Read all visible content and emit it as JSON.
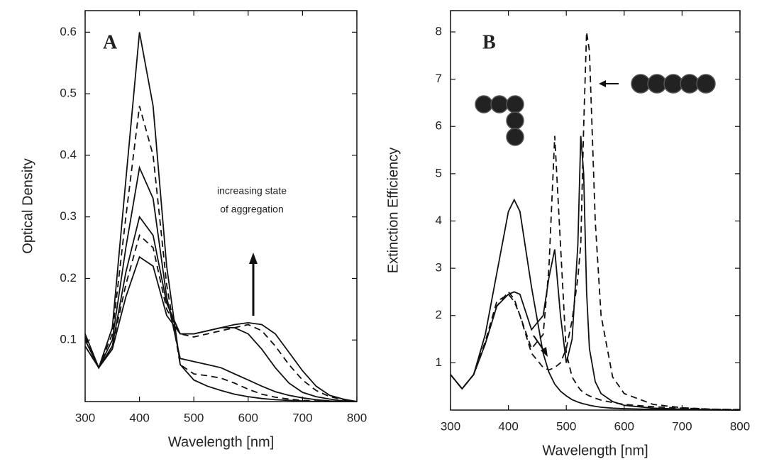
{
  "chart_data": [
    {
      "type": "line",
      "panel": "A",
      "x_label": "Wavelength [nm]",
      "y_label": "Optical Density",
      "annotation": [
        "increasing state",
        "of aggregation"
      ],
      "xlim": [
        300,
        800
      ],
      "xticks": [
        300,
        400,
        500,
        600,
        700,
        800
      ],
      "ylim": [
        0,
        0.635
      ],
      "yticks": [
        0.1,
        0.2,
        0.3,
        0.4,
        0.5,
        0.6
      ],
      "x": [
        300,
        325,
        350,
        375,
        400,
        425,
        450,
        475,
        500,
        525,
        550,
        575,
        600,
        625,
        650,
        675,
        700,
        725,
        750,
        775,
        800
      ],
      "series": [
        {
          "color": "#111111",
          "style": "solid",
          "values": [
            0.11,
            0.055,
            0.12,
            0.36,
            0.6,
            0.48,
            0.22,
            0.06,
            0.035,
            0.025,
            0.018,
            0.012,
            0.008,
            0.005,
            0.003,
            0.002,
            0.001,
            0,
            0,
            0,
            0
          ]
        },
        {
          "color": "#111111",
          "style": "dashed",
          "values": [
            0.105,
            0.055,
            0.11,
            0.3,
            0.48,
            0.4,
            0.19,
            0.06,
            0.045,
            0.042,
            0.038,
            0.03,
            0.02,
            0.012,
            0.007,
            0.004,
            0.002,
            0.001,
            0,
            0,
            0
          ]
        },
        {
          "color": "#111111",
          "style": "solid",
          "values": [
            0.1,
            0.055,
            0.1,
            0.25,
            0.38,
            0.33,
            0.17,
            0.07,
            0.065,
            0.06,
            0.055,
            0.045,
            0.035,
            0.025,
            0.016,
            0.01,
            0.006,
            0.003,
            0.001,
            0,
            0
          ]
        },
        {
          "color": "#111111",
          "style": "solid",
          "values": [
            0.1,
            0.055,
            0.09,
            0.21,
            0.3,
            0.27,
            0.16,
            0.11,
            0.11,
            0.115,
            0.12,
            0.12,
            0.11,
            0.085,
            0.055,
            0.03,
            0.015,
            0.008,
            0.004,
            0.001,
            0
          ]
        },
        {
          "color": "#111111",
          "style": "dashed",
          "values": [
            0.09,
            0.055,
            0.09,
            0.19,
            0.27,
            0.25,
            0.15,
            0.11,
            0.105,
            0.11,
            0.115,
            0.12,
            0.125,
            0.115,
            0.09,
            0.06,
            0.035,
            0.018,
            0.008,
            0.003,
            0
          ]
        },
        {
          "color": "#111111",
          "style": "solid",
          "values": [
            0.09,
            0.055,
            0.085,
            0.17,
            0.235,
            0.22,
            0.14,
            0.11,
            0.11,
            0.115,
            0.12,
            0.125,
            0.128,
            0.125,
            0.11,
            0.08,
            0.05,
            0.025,
            0.01,
            0.004,
            0
          ]
        }
      ]
    },
    {
      "type": "line",
      "panel": "B",
      "x_label": "Wavelength [nm]",
      "y_label": "Extinction Efficiency",
      "xlim": [
        300,
        800
      ],
      "xticks": [
        300,
        400,
        500,
        600,
        700,
        800
      ],
      "ylim": [
        0,
        8.45
      ],
      "yticks": [
        1,
        2,
        3,
        4,
        5,
        6,
        7,
        8
      ],
      "x": [
        300,
        320,
        340,
        360,
        380,
        400,
        410,
        420,
        440,
        460,
        470,
        480,
        490,
        500,
        510,
        520,
        525,
        530,
        535,
        540,
        550,
        560,
        580,
        600,
        650,
        700,
        750,
        800
      ],
      "series": [
        {
          "color": "#111111",
          "style": "solid",
          "values": [
            0.75,
            0.45,
            0.75,
            1.6,
            2.9,
            4.2,
            4.45,
            4.2,
            2.6,
            1.2,
            0.8,
            0.55,
            0.4,
            0.3,
            0.22,
            0.17,
            0.15,
            0.13,
            0.12,
            0.1,
            0.08,
            0.06,
            0.04,
            0.03,
            0.015,
            0.008,
            0.004,
            0
          ]
        },
        {
          "color": "#111111",
          "style": "dashed",
          "values": [
            0.75,
            0.45,
            0.75,
            1.4,
            2.2,
            2.5,
            2.35,
            2.0,
            1.3,
            1.6,
            3.0,
            5.8,
            3.5,
            1.2,
            0.7,
            0.5,
            0.42,
            0.37,
            0.33,
            0.3,
            0.25,
            0.21,
            0.16,
            0.12,
            0.07,
            0.04,
            0.02,
            0.01
          ]
        },
        {
          "color": "#111111",
          "style": "solid",
          "values": [
            0.75,
            0.45,
            0.75,
            1.4,
            2.2,
            2.45,
            2.5,
            2.45,
            1.7,
            2.0,
            2.8,
            3.4,
            2.0,
            1.0,
            1.5,
            3.5,
            5.8,
            5.0,
            2.5,
            1.3,
            0.6,
            0.35,
            0.18,
            0.1,
            0.04,
            0.02,
            0.01,
            0
          ]
        },
        {
          "color": "#111111",
          "style": "dashed",
          "values": [
            0.75,
            0.45,
            0.75,
            1.45,
            2.3,
            2.45,
            2.3,
            2.0,
            1.2,
            0.9,
            0.85,
            0.9,
            1.0,
            1.3,
            1.9,
            2.8,
            3.5,
            6.0,
            8.0,
            7.6,
            4.0,
            2.0,
            0.7,
            0.35,
            0.12,
            0.05,
            0.02,
            0.01
          ]
        }
      ]
    }
  ]
}
